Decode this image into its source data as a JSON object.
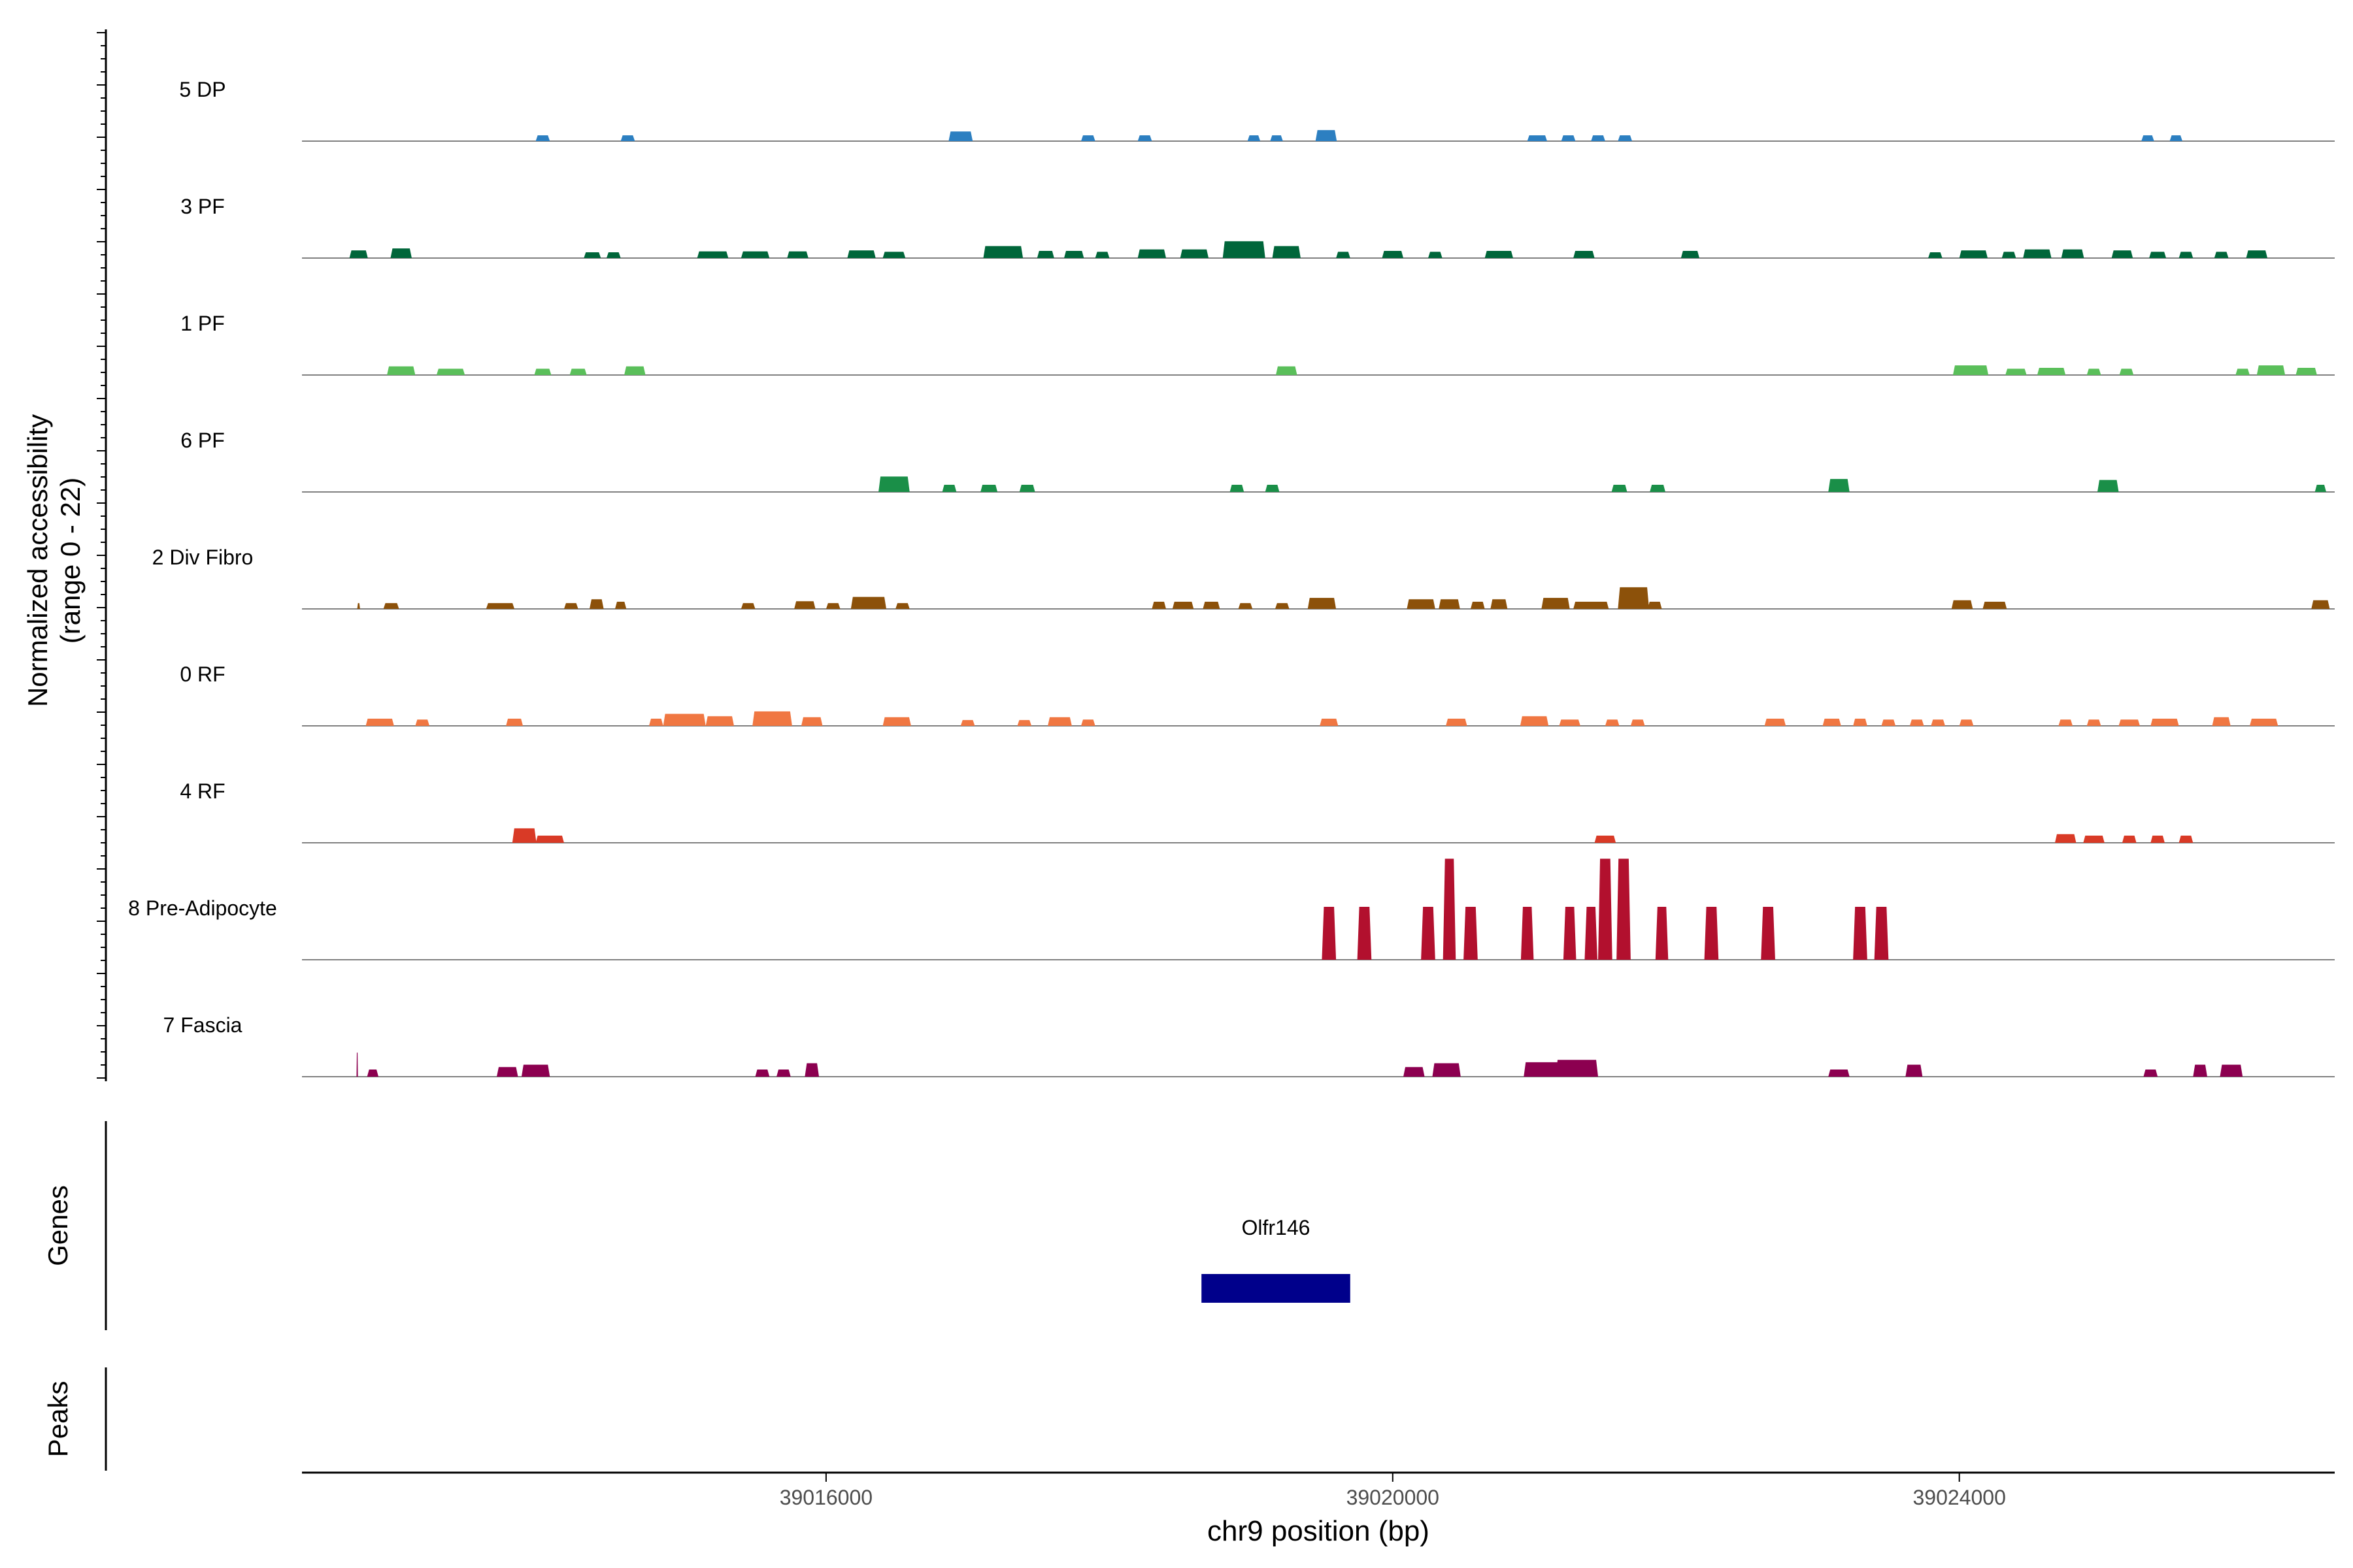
{
  "chart_data": {
    "type": "area",
    "subtype": "coverage-track-plot",
    "title": "",
    "xlabel": "chr9 position (bp)",
    "ylabel_line1": "Normalized accessibility",
    "ylabel_line2": "(range 0 - 22)",
    "y_range": [
      0,
      22
    ],
    "xlim": [
      39012300,
      39026650
    ],
    "x_ticks": [
      39016000,
      39020000,
      39024000
    ],
    "x_tick_labels": [
      "39016000",
      "39020000",
      "39024000"
    ],
    "grid": false,
    "legend": "none",
    "tracks": [
      {
        "name": "5 DP",
        "color": "#2c7fc1",
        "peaks": [
          [
            39014000,
            1.2,
            100
          ],
          [
            39014600,
            1.2,
            100
          ],
          [
            39016950,
            2.0,
            170
          ],
          [
            39017850,
            1.2,
            100
          ],
          [
            39018250,
            1.2,
            100
          ],
          [
            39019020,
            1.2,
            90
          ],
          [
            39019180,
            1.2,
            90
          ],
          [
            39019530,
            2.3,
            150
          ],
          [
            39021020,
            1.2,
            140
          ],
          [
            39021240,
            1.2,
            100
          ],
          [
            39021450,
            1.2,
            100
          ],
          [
            39021640,
            1.2,
            100
          ],
          [
            39025330,
            1.2,
            90
          ],
          [
            39025530,
            1.2,
            90
          ]
        ]
      },
      {
        "name": "3 PF",
        "color": "#00663a",
        "peaks": [
          [
            39012700,
            1.6,
            130
          ],
          [
            39013000,
            2.0,
            150
          ],
          [
            39014350,
            1.2,
            120
          ],
          [
            39014500,
            1.2,
            100
          ],
          [
            39015200,
            1.4,
            220
          ],
          [
            39015500,
            1.4,
            200
          ],
          [
            39015800,
            1.4,
            150
          ],
          [
            39016250,
            1.6,
            200
          ],
          [
            39016480,
            1.3,
            160
          ],
          [
            39017250,
            2.5,
            280
          ],
          [
            39017550,
            1.5,
            120
          ],
          [
            39017750,
            1.5,
            140
          ],
          [
            39017950,
            1.3,
            100
          ],
          [
            39018300,
            1.8,
            200
          ],
          [
            39018600,
            1.8,
            200
          ],
          [
            39018950,
            3.5,
            300
          ],
          [
            39019250,
            2.5,
            200
          ],
          [
            39019650,
            1.3,
            100
          ],
          [
            39020000,
            1.5,
            150
          ],
          [
            39020300,
            1.3,
            100
          ],
          [
            39020750,
            1.5,
            200
          ],
          [
            39021350,
            1.5,
            150
          ],
          [
            39022100,
            1.5,
            130
          ],
          [
            39023830,
            1.2,
            100
          ],
          [
            39024100,
            1.6,
            200
          ],
          [
            39024350,
            1.3,
            100
          ],
          [
            39024550,
            1.8,
            200
          ],
          [
            39024800,
            1.8,
            160
          ],
          [
            39025150,
            1.6,
            150
          ],
          [
            39025400,
            1.3,
            120
          ],
          [
            39025600,
            1.3,
            100
          ],
          [
            39025850,
            1.3,
            100
          ],
          [
            39026100,
            1.6,
            150
          ]
        ]
      },
      {
        "name": "1 PF",
        "color": "#5abf5a",
        "peaks": [
          [
            39013000,
            1.8,
            200
          ],
          [
            39013350,
            1.3,
            200
          ],
          [
            39014000,
            1.3,
            120
          ],
          [
            39014250,
            1.3,
            120
          ],
          [
            39014650,
            1.8,
            150
          ],
          [
            39019250,
            1.8,
            150
          ],
          [
            39024080,
            2.0,
            250
          ],
          [
            39024400,
            1.3,
            150
          ],
          [
            39024650,
            1.5,
            200
          ],
          [
            39024950,
            1.3,
            100
          ],
          [
            39025180,
            1.3,
            100
          ],
          [
            39026000,
            1.3,
            100
          ],
          [
            39026200,
            2.0,
            200
          ],
          [
            39026450,
            1.5,
            150
          ]
        ]
      },
      {
        "name": "6 PF",
        "color": "#1a8f48",
        "peaks": [
          [
            39016480,
            3.2,
            220
          ],
          [
            39016870,
            1.5,
            100
          ],
          [
            39017150,
            1.5,
            120
          ],
          [
            39017420,
            1.5,
            110
          ],
          [
            39018900,
            1.5,
            100
          ],
          [
            39019150,
            1.5,
            100
          ],
          [
            39021600,
            1.5,
            110
          ],
          [
            39021870,
            1.5,
            110
          ],
          [
            39023150,
            2.7,
            150
          ],
          [
            39025050,
            2.5,
            150
          ],
          [
            39026550,
            1.5,
            80
          ]
        ]
      },
      {
        "name": "2 Div Fibro",
        "color": "#8c510a",
        "peaks": [
          [
            39012700,
            1.2,
            20
          ],
          [
            39012930,
            1.2,
            110
          ],
          [
            39013700,
            1.2,
            200
          ],
          [
            39014200,
            1.2,
            100
          ],
          [
            39014380,
            2.0,
            100
          ],
          [
            39014550,
            1.5,
            80
          ],
          [
            39015450,
            1.2,
            100
          ],
          [
            39015850,
            1.6,
            150
          ],
          [
            39016050,
            1.2,
            100
          ],
          [
            39016300,
            2.5,
            250
          ],
          [
            39016540,
            1.2,
            100
          ],
          [
            39018350,
            1.5,
            100
          ],
          [
            39018520,
            1.5,
            150
          ],
          [
            39018720,
            1.5,
            120
          ],
          [
            39018960,
            1.2,
            100
          ],
          [
            39019220,
            1.2,
            100
          ],
          [
            39019500,
            2.3,
            200
          ],
          [
            39020200,
            2.0,
            200
          ],
          [
            39020400,
            2.0,
            150
          ],
          [
            39020600,
            1.5,
            100
          ],
          [
            39020750,
            2.0,
            120
          ],
          [
            39021150,
            2.3,
            200
          ],
          [
            39021400,
            1.5,
            250
          ],
          [
            39021700,
            4.5,
            220
          ],
          [
            39021850,
            1.5,
            100
          ],
          [
            39024020,
            1.8,
            150
          ],
          [
            39024250,
            1.5,
            170
          ],
          [
            39026550,
            1.8,
            130
          ]
        ]
      },
      {
        "name": "0 RF",
        "color": "#f07742",
        "peaks": [
          [
            39012850,
            1.5,
            200
          ],
          [
            39013150,
            1.3,
            100
          ],
          [
            39013800,
            1.5,
            120
          ],
          [
            39014800,
            1.5,
            100
          ],
          [
            39015000,
            2.5,
            300
          ],
          [
            39015250,
            2.0,
            200
          ],
          [
            39015620,
            3.0,
            280
          ],
          [
            39015900,
            1.8,
            150
          ],
          [
            39016500,
            1.8,
            200
          ],
          [
            39017000,
            1.2,
            100
          ],
          [
            39017400,
            1.2,
            100
          ],
          [
            39017650,
            1.8,
            170
          ],
          [
            39017850,
            1.3,
            100
          ],
          [
            39019550,
            1.5,
            130
          ],
          [
            39020450,
            1.5,
            150
          ],
          [
            39021000,
            2.0,
            200
          ],
          [
            39021250,
            1.3,
            150
          ],
          [
            39021550,
            1.3,
            100
          ],
          [
            39021730,
            1.3,
            100
          ],
          [
            39022700,
            1.5,
            150
          ],
          [
            39023100,
            1.5,
            130
          ],
          [
            39023300,
            1.5,
            100
          ],
          [
            39023500,
            1.3,
            100
          ],
          [
            39023700,
            1.3,
            100
          ],
          [
            39023850,
            1.3,
            100
          ],
          [
            39024050,
            1.3,
            100
          ],
          [
            39024750,
            1.3,
            100
          ],
          [
            39024950,
            1.3,
            100
          ],
          [
            39025200,
            1.3,
            150
          ],
          [
            39025450,
            1.5,
            200
          ],
          [
            39025850,
            1.8,
            130
          ],
          [
            39026150,
            1.5,
            200
          ]
        ]
      },
      {
        "name": "4 RF",
        "color": "#d93a26",
        "peaks": [
          [
            39013870,
            3.0,
            170
          ],
          [
            39014050,
            1.5,
            200
          ],
          [
            39021500,
            1.5,
            150
          ],
          [
            39024750,
            1.8,
            150
          ],
          [
            39024950,
            1.5,
            150
          ],
          [
            39025200,
            1.5,
            100
          ],
          [
            39025400,
            1.5,
            100
          ],
          [
            39025600,
            1.5,
            100
          ]
        ]
      },
      {
        "name": "8 Pre-Adipocyte",
        "color": "#b2102e",
        "peaks": [
          [
            39019550,
            11,
            100
          ],
          [
            39019800,
            11,
            100
          ],
          [
            39020250,
            11,
            100
          ],
          [
            39020400,
            21,
            90
          ],
          [
            39020550,
            11,
            100
          ],
          [
            39020950,
            11,
            90
          ],
          [
            39021250,
            11,
            90
          ],
          [
            39021400,
            11,
            90
          ],
          [
            39021500,
            21,
            100
          ],
          [
            39021630,
            21,
            100
          ],
          [
            39021900,
            11,
            90
          ],
          [
            39022250,
            11,
            100
          ],
          [
            39022650,
            11,
            100
          ],
          [
            39023300,
            11,
            100
          ],
          [
            39023450,
            11,
            100
          ]
        ]
      },
      {
        "name": "7 Fascia",
        "color": "#8c0050",
        "peaks": [
          [
            39012690,
            5,
            10
          ],
          [
            39012800,
            1.5,
            80
          ],
          [
            39013750,
            2.0,
            150
          ],
          [
            39013950,
            2.5,
            200
          ],
          [
            39015550,
            1.5,
            100
          ],
          [
            39015700,
            1.5,
            100
          ],
          [
            39015900,
            2.8,
            100
          ],
          [
            39020150,
            2.0,
            150
          ],
          [
            39020380,
            2.8,
            200
          ],
          [
            39021050,
            3.0,
            250
          ],
          [
            39021300,
            3.5,
            300
          ],
          [
            39023150,
            1.5,
            150
          ],
          [
            39023680,
            2.5,
            120
          ],
          [
            39025350,
            1.5,
            100
          ],
          [
            39025700,
            2.5,
            100
          ],
          [
            39025920,
            2.5,
            160
          ]
        ]
      }
    ],
    "genes_label": "Genes",
    "gene": {
      "name": "Olfr146",
      "start": 39018650,
      "end": 39019700,
      "color": "#00008b"
    },
    "peaks_label": "Peaks"
  }
}
